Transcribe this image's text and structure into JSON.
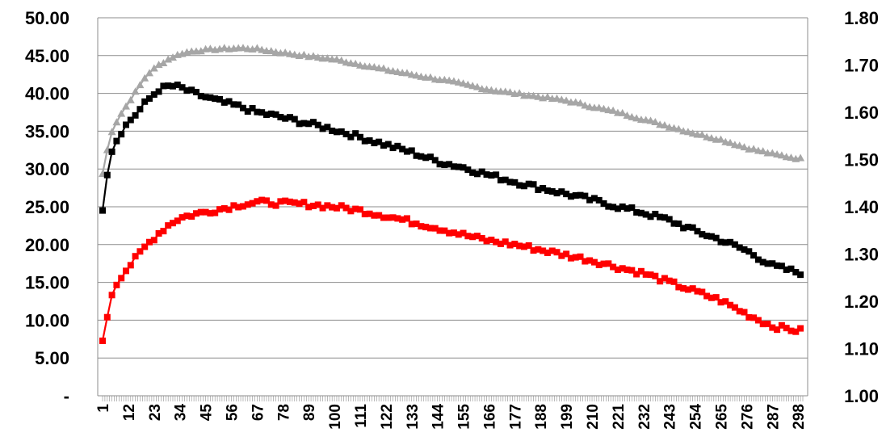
{
  "chart_data": {
    "type": "line",
    "title": "",
    "xlabel": "",
    "ylabel": "",
    "y2label": "",
    "ylim": [
      0,
      50
    ],
    "y2lim": [
      1.0,
      1.8
    ],
    "xlim": [
      1,
      300
    ],
    "grid": "horizontal",
    "legend": "none",
    "y_tick_labels": [
      "-",
      "5.00",
      "10.00",
      "15.00",
      "20.00",
      "25.00",
      "30.00",
      "35.00",
      "40.00",
      "45.00",
      "50.00"
    ],
    "y2_tick_labels": [
      "1.00",
      "1.10",
      "1.20",
      "1.30",
      "1.40",
      "1.50",
      "1.60",
      "1.70",
      "1.80"
    ],
    "x_tick_labels": [
      "1",
      "12",
      "23",
      "34",
      "45",
      "56",
      "67",
      "78",
      "89",
      "100",
      "111",
      "122",
      "133",
      "144",
      "155",
      "166",
      "177",
      "188",
      "199",
      "210",
      "221",
      "232",
      "243",
      "254",
      "265",
      "276",
      "287",
      "298"
    ],
    "series": [
      {
        "axis": "y2",
        "color": "#a6a6a6",
        "marker": "triangle",
        "x": [
          1,
          3,
          5,
          8,
          12,
          16,
          20,
          25,
          30,
          35,
          40,
          50,
          60,
          67,
          75,
          90,
          100,
          110,
          120,
          133,
          150,
          166,
          180,
          199,
          210,
          221,
          232,
          243,
          254,
          265,
          276,
          287,
          298
        ],
        "y": [
          1.47,
          1.52,
          1.56,
          1.59,
          1.62,
          1.65,
          1.68,
          1.7,
          1.715,
          1.725,
          1.73,
          1.734,
          1.736,
          1.734,
          1.728,
          1.718,
          1.712,
          1.702,
          1.692,
          1.68,
          1.665,
          1.648,
          1.638,
          1.625,
          1.612,
          1.6,
          1.585,
          1.57,
          1.555,
          1.542,
          1.525,
          1.512,
          1.502
        ]
      },
      {
        "axis": "y",
        "color": "#000000",
        "marker": "square",
        "x": [
          1,
          3,
          5,
          8,
          12,
          16,
          20,
          25,
          30,
          34,
          40,
          50,
          60,
          67,
          75,
          89,
          100,
          111,
          122,
          133,
          144,
          155,
          166,
          177,
          188,
          199,
          210,
          221,
          232,
          243,
          254,
          265,
          276,
          287,
          298
        ],
        "y": [
          24.8,
          29.5,
          32.5,
          34.5,
          36.2,
          37.5,
          39.0,
          40.5,
          41.0,
          40.8,
          40.0,
          39.0,
          38.2,
          37.5,
          37.0,
          36.0,
          35.2,
          34.2,
          33.2,
          32.2,
          31.0,
          30.2,
          29.2,
          28.3,
          27.5,
          26.7,
          25.9,
          25.0,
          24.2,
          23.2,
          21.8,
          20.6,
          19.2,
          17.2,
          16.3
        ]
      },
      {
        "axis": "y",
        "color": "#ff0000",
        "marker": "square",
        "x": [
          1,
          3,
          5,
          8,
          12,
          16,
          20,
          25,
          30,
          34,
          40,
          50,
          60,
          67,
          75,
          89,
          100,
          111,
          122,
          133,
          144,
          155,
          166,
          177,
          188,
          199,
          210,
          221,
          232,
          243,
          254,
          265,
          276,
          287,
          298
        ],
        "y": [
          7.0,
          10.5,
          13.5,
          15.5,
          17.0,
          18.5,
          20.0,
          21.5,
          22.8,
          23.5,
          24.0,
          24.6,
          25.3,
          25.6,
          25.5,
          25.3,
          25.0,
          24.5,
          23.8,
          23.0,
          22.2,
          21.3,
          20.5,
          20.0,
          19.3,
          18.6,
          17.9,
          17.0,
          16.2,
          15.0,
          13.8,
          12.6,
          10.8,
          9.2,
          8.6
        ]
      }
    ]
  }
}
